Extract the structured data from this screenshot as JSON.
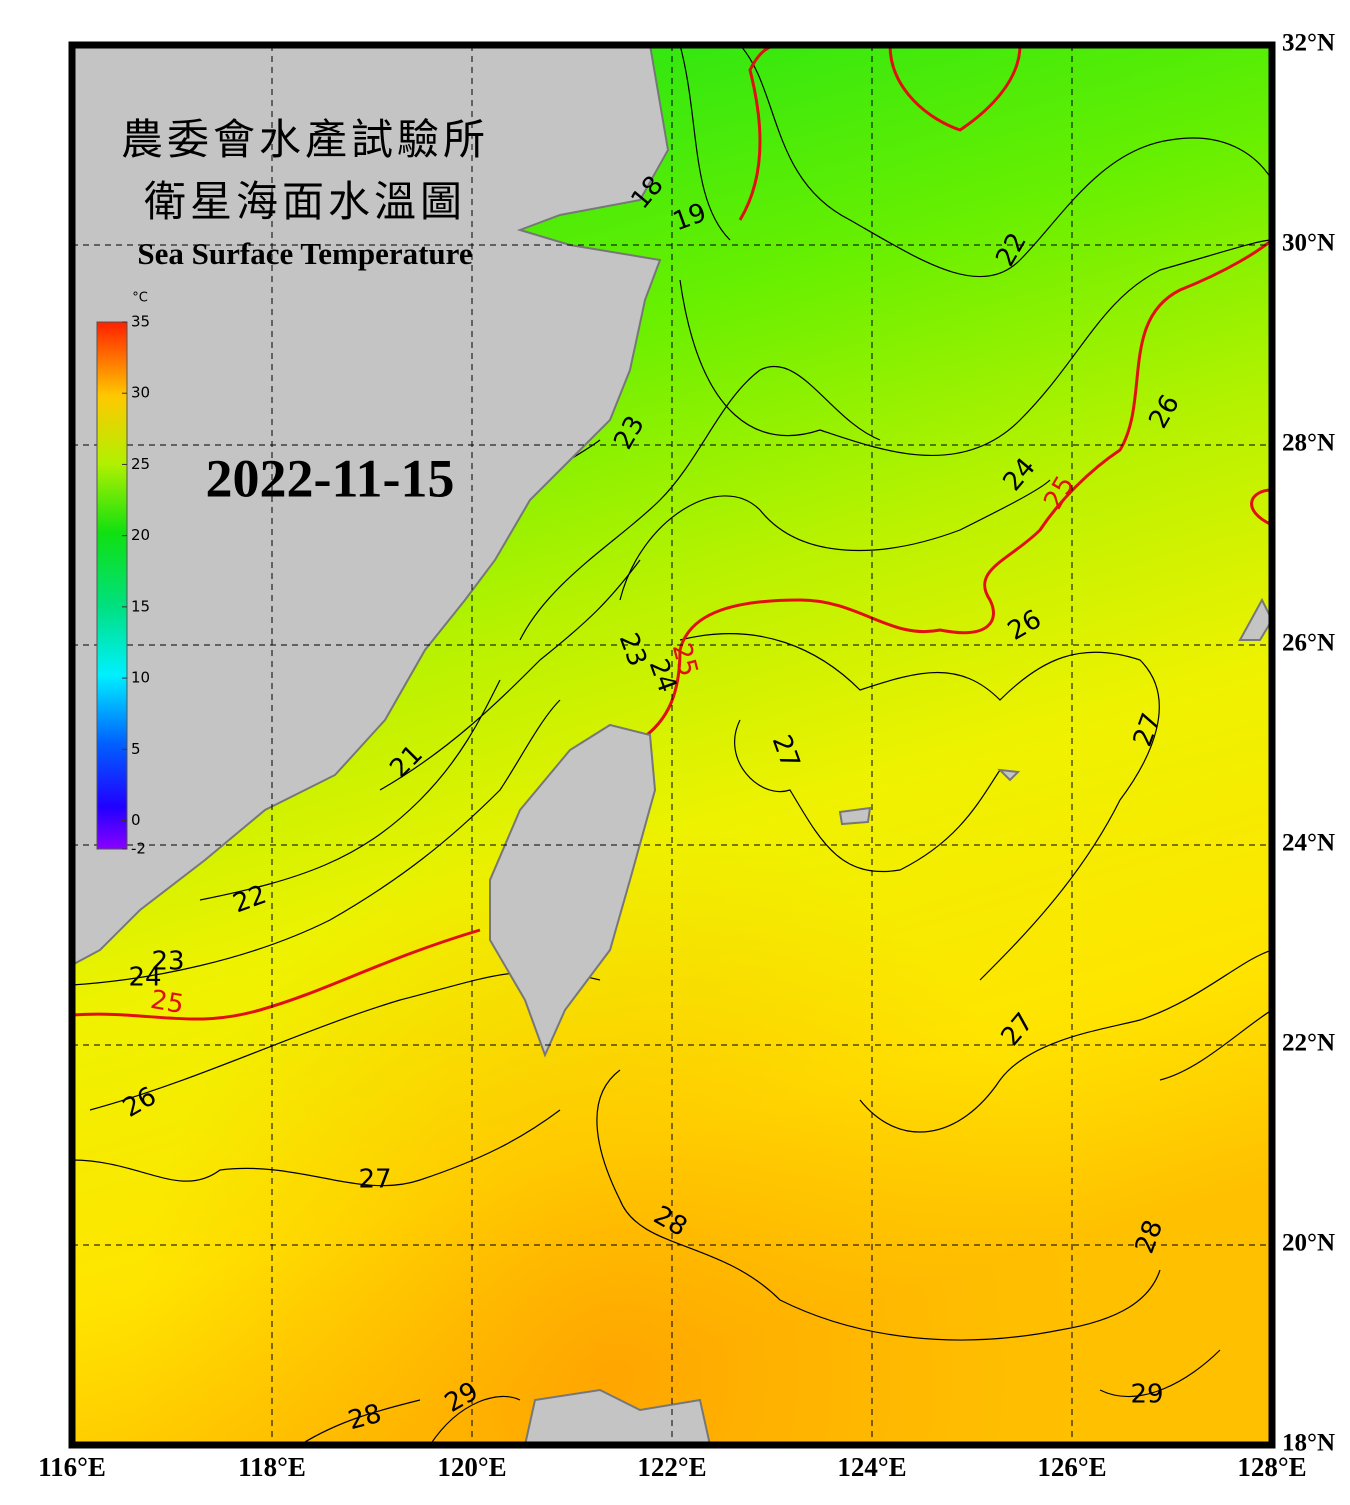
{
  "title_zh_1": "農委會水產試驗所",
  "title_zh_2": "衛星海面水溫圖",
  "title_en": "Sea Surface Temperature",
  "date": "2022-11-15",
  "colorbar": {
    "unit": "°C",
    "range": [
      -2,
      35
    ],
    "ticks": [
      35,
      30,
      25,
      20,
      15,
      10,
      5,
      0,
      -2
    ]
  },
  "map": {
    "xlim": [
      116,
      128
    ],
    "ylim": [
      18,
      32
    ],
    "xticks": [
      {
        "value": 116,
        "label": "116°E"
      },
      {
        "value": 118,
        "label": "118°E"
      },
      {
        "value": 120,
        "label": "120°E"
      },
      {
        "value": 122,
        "label": "122°E"
      },
      {
        "value": 124,
        "label": "124°E"
      },
      {
        "value": 126,
        "label": "126°E"
      },
      {
        "value": 128,
        "label": "128°E"
      }
    ],
    "yticks": [
      {
        "value": 18,
        "label": "18°N"
      },
      {
        "value": 20,
        "label": "20°N"
      },
      {
        "value": 22,
        "label": "22°N"
      },
      {
        "value": 24,
        "label": "24°N"
      },
      {
        "value": 26,
        "label": "26°N"
      },
      {
        "value": 28,
        "label": "28°N"
      },
      {
        "value": 30,
        "label": "30°N"
      },
      {
        "value": 32,
        "label": "32°N"
      }
    ],
    "contour_labels": [
      "18",
      "19",
      "22",
      "23",
      "24",
      "25",
      "26",
      "21",
      "22",
      "23",
      "24",
      "25",
      "26",
      "23",
      "24",
      "25",
      "26",
      "27",
      "27",
      "27",
      "27",
      "28",
      "28",
      "28",
      "29",
      "29"
    ]
  }
}
